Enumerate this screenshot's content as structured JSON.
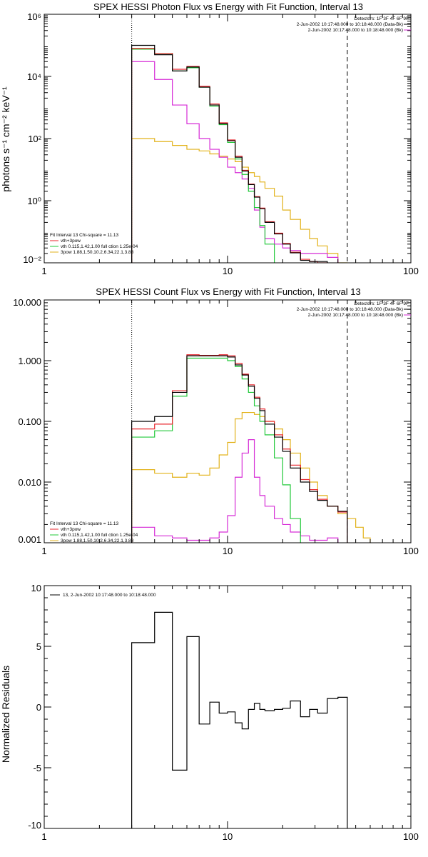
{
  "chart_data": [
    {
      "type": "line",
      "title": "SPEX HESSI Photon Flux vs Energy with Fit Function, Interval 13",
      "xlabel": "",
      "ylabel": "photons s⁻¹ cm⁻² keV⁻¹",
      "x_scale": "log",
      "y_scale": "log",
      "xlim": [
        1,
        100
      ],
      "ylim": [
        0.01,
        1000000
      ],
      "x_ticks": [
        1,
        10,
        100
      ],
      "x_tick_labels": [
        "1",
        "10",
        "100"
      ],
      "y_ticks": [
        0.01,
        1,
        100,
        10000,
        1000000
      ],
      "y_tick_labels": [
        "10⁻²",
        "10⁰",
        "10²",
        "10⁴",
        "10⁶"
      ],
      "fit_range": [
        3,
        45
      ],
      "energy_edges": [
        3,
        4,
        5,
        6,
        7,
        8,
        9,
        10,
        11,
        12,
        13,
        14,
        15,
        16,
        18,
        20,
        22,
        25,
        28,
        31,
        35,
        40,
        45,
        50
      ],
      "info_header": [
        "Detectors: 1F 3F 4F 6F 9F",
        "2-Jun-2002 10:17:48.000 to 10:18:48.000 (Data-Bk)",
        "2-Jun-2002 10:17:48.000 to 10:18:48.000 (Bk)"
      ],
      "fit_info": [
        "Fit Interval 13    Chi-square = 11.13",
        "vth+3pow",
        "vth 0.115,1.42,1.00  full ction 1.25e-04",
        "3pow 1.88,1.50,10.2,6.34,22.1,3.88"
      ],
      "series": [
        {
          "key": "data",
          "color": "#000000",
          "values": [
            100000,
            50000,
            15000,
            20000,
            4500,
            1200,
            300,
            85,
            25,
            9,
            3.3,
            1.3,
            0.55,
            0.2,
            0.085,
            0.04,
            0.021,
            0.012,
            0.011,
            0.011,
            0.009,
            null,
            null
          ]
        },
        {
          "key": "total",
          "color": "#e8262e",
          "values": [
            80000,
            55000,
            17000,
            21000,
            4800,
            1300,
            320,
            90,
            27,
            9.5,
            3.4,
            1.35,
            0.58,
            0.21,
            0.09,
            0.042,
            0.022,
            0.013,
            0.011,
            0.01,
            0.009,
            null,
            null
          ]
        },
        {
          "key": "vth",
          "color": "#22c93a",
          "values": [
            75000,
            55000,
            15000,
            19000,
            4500,
            1100,
            280,
            75,
            22,
            7,
            2,
            0.6,
            0.16,
            0.04,
            0.009,
            0.0015,
            null,
            null,
            null,
            null,
            null,
            null,
            null
          ]
        },
        {
          "key": "3pow",
          "color": "#d62ad6",
          "values": [
            30000,
            8000,
            1200,
            300,
            100,
            45,
            25,
            12,
            8,
            5,
            2.5,
            0.5,
            0.14,
            0.06,
            0.04,
            0.03,
            0.025,
            0.02,
            0.02,
            0.02,
            0.015,
            null,
            null
          ]
        },
        {
          "key": "bk",
          "color": "#e2b21a",
          "values": [
            100,
            80,
            60,
            45,
            40,
            32,
            27,
            22,
            18,
            12,
            8,
            6,
            4,
            2.5,
            1.4,
            0.5,
            0.25,
            0.12,
            0.06,
            0.035,
            0.02,
            0.01,
            0.008
          ]
        }
      ]
    },
    {
      "type": "line",
      "title": "SPEX HESSI Count Flux vs Energy with Fit Function, Interval 13",
      "xlabel": "",
      "ylabel": "",
      "x_scale": "log",
      "y_scale": "log",
      "xlim": [
        1,
        100
      ],
      "ylim": [
        0.001,
        10
      ],
      "x_ticks": [
        1,
        10,
        100
      ],
      "x_tick_labels": [
        "1",
        "10",
        "100"
      ],
      "y_ticks": [
        0.001,
        0.01,
        0.1,
        1,
        10
      ],
      "y_tick_labels": [
        "0.001",
        "0.010",
        "0.100",
        "1.000",
        "10.000"
      ],
      "fit_range": [
        3,
        45
      ],
      "energy_edges": [
        3,
        4,
        5,
        6,
        7,
        8,
        9,
        10,
        11,
        12,
        13,
        14,
        15,
        16,
        18,
        20,
        22,
        25,
        28,
        31,
        35,
        40,
        45,
        50,
        55,
        60
      ],
      "info_header": [
        "Detectors: 1F 3F 4F 6F 9F",
        "2-Jun-2002 10:17:48.000 to 10:18:48.000 (Data-Bk)",
        "2-Jun-2002 10:17:48.000 to 10:18:48.000 (Bk)"
      ],
      "fit_info": [
        "Fit Interval 13    Chi-square = 11.13",
        "vth+3pow",
        "vth 0.115,1.42,1.00  full ction 1.25e-04",
        "3pow 1.88,1.50,10.2,6.34,22.1,3.88"
      ],
      "series": [
        {
          "key": "data",
          "color": "#000000",
          "values": [
            0.1,
            0.12,
            0.3,
            1.2,
            1.2,
            1.2,
            1.2,
            1.15,
            0.85,
            0.58,
            0.38,
            0.24,
            0.15,
            0.09,
            0.055,
            0.032,
            0.017,
            0.01,
            0.007,
            0.005,
            0.004,
            0.0033,
            null,
            null,
            null
          ]
        },
        {
          "key": "total",
          "color": "#e8262e",
          "values": [
            0.075,
            0.09,
            0.32,
            1.25,
            1.22,
            1.22,
            1.25,
            1.2,
            0.9,
            0.6,
            0.4,
            0.25,
            0.16,
            0.1,
            0.06,
            0.035,
            0.019,
            0.011,
            0.0075,
            0.0052,
            0.004,
            0.0032,
            null,
            null,
            null
          ]
        },
        {
          "key": "vth",
          "color": "#22c93a",
          "values": [
            0.055,
            0.07,
            0.26,
            1.1,
            1.1,
            1.1,
            1.1,
            1.0,
            0.8,
            0.5,
            0.3,
            0.18,
            0.1,
            0.06,
            0.025,
            0.009,
            0.0025,
            0.0006,
            null,
            null,
            null,
            null,
            null,
            null,
            null
          ]
        },
        {
          "key": "3pow",
          "color": "#d62ad6",
          "values": [
            0.0018,
            0.0013,
            0.0012,
            0.0011,
            0.0011,
            0.0012,
            0.0015,
            0.0028,
            0.012,
            0.03,
            0.05,
            0.012,
            0.006,
            0.004,
            0.0025,
            0.002,
            0.0015,
            0.0013,
            0.0011,
            0.0011,
            0.0012,
            null,
            null,
            null,
            null
          ]
        },
        {
          "key": "bk",
          "color": "#e2b21a",
          "values": [
            0.016,
            0.014,
            0.012,
            0.014,
            0.013,
            0.017,
            0.028,
            0.045,
            0.11,
            0.14,
            0.14,
            0.13,
            0.12,
            0.1,
            0.075,
            0.05,
            0.03,
            0.017,
            0.01,
            0.006,
            0.004,
            0.003,
            0.0025,
            0.0018,
            0.0012
          ]
        }
      ]
    },
    {
      "type": "line",
      "title": "",
      "xlabel": "",
      "ylabel": "Normalized Residuals",
      "x_scale": "log",
      "y_scale": "linear",
      "xlim": [
        1,
        100
      ],
      "ylim": [
        -10,
        10
      ],
      "x_ticks": [
        1,
        10,
        100
      ],
      "x_tick_labels": [
        "1",
        "10",
        "100"
      ],
      "y_ticks": [
        -10,
        -5,
        0,
        5,
        10
      ],
      "y_tick_labels": [
        "-10",
        "-5",
        "0",
        "5",
        "10"
      ],
      "legend": "13,  2-Jun-2002 10:17:48.000 to 10:18:48.000",
      "energy_edges": [
        3,
        4,
        5,
        6,
        7,
        8,
        9,
        10,
        11,
        12,
        13,
        14,
        15,
        16,
        18,
        20,
        22,
        25,
        28,
        31,
        35,
        40,
        45
      ],
      "series": [
        {
          "key": "residuals",
          "color": "#000000",
          "values": [
            5.3,
            7.8,
            -5.2,
            5.8,
            -1.4,
            0.4,
            -0.5,
            -0.4,
            -1.3,
            -1.8,
            -0.2,
            0.3,
            -0.2,
            -0.3,
            -0.2,
            -0.1,
            0.5,
            -0.8,
            -0.2,
            -0.5,
            0.7,
            0.8
          ]
        }
      ]
    }
  ]
}
